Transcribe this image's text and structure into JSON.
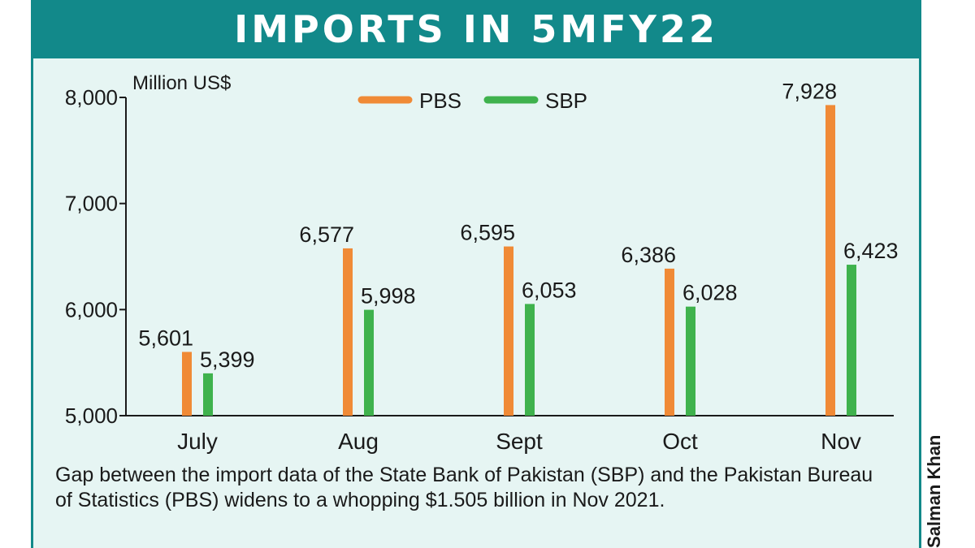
{
  "colors": {
    "pbs": "#f08a36",
    "sbp": "#3fb24d",
    "header": "#12898a",
    "panel": "#e6f5f3"
  },
  "chart_data": {
    "type": "bar",
    "title": "IMPORTS IN 5MFY22",
    "ylabel": "Million US$",
    "xlabel": "",
    "categories": [
      "July",
      "Aug",
      "Sept",
      "Oct",
      "Nov"
    ],
    "series": [
      {
        "name": "PBS",
        "values": [
          5601,
          6577,
          6595,
          6386,
          7928
        ],
        "labels": [
          "5,601",
          "6,577",
          "6,595",
          "6,386",
          "7,928"
        ]
      },
      {
        "name": "SBP",
        "values": [
          5399,
          5998,
          6053,
          6028,
          6423
        ],
        "labels": [
          "5,399",
          "5,998",
          "6,053",
          "6,028",
          "6,423"
        ]
      }
    ],
    "ylim": [
      5000,
      8000
    ],
    "yticks": [
      5000,
      6000,
      7000,
      8000
    ],
    "ytick_labels": [
      "5,000",
      "6,000",
      "7,000",
      "8,000"
    ],
    "grid": false,
    "legend": "top-center"
  },
  "caption": "Gap between the import data of the State Bank of Pakistan (SBP) and the Pakistan Bureau of Statistics (PBS) widens to a whopping $1.505 billion in Nov 2021.",
  "credit": "Salman Khan"
}
